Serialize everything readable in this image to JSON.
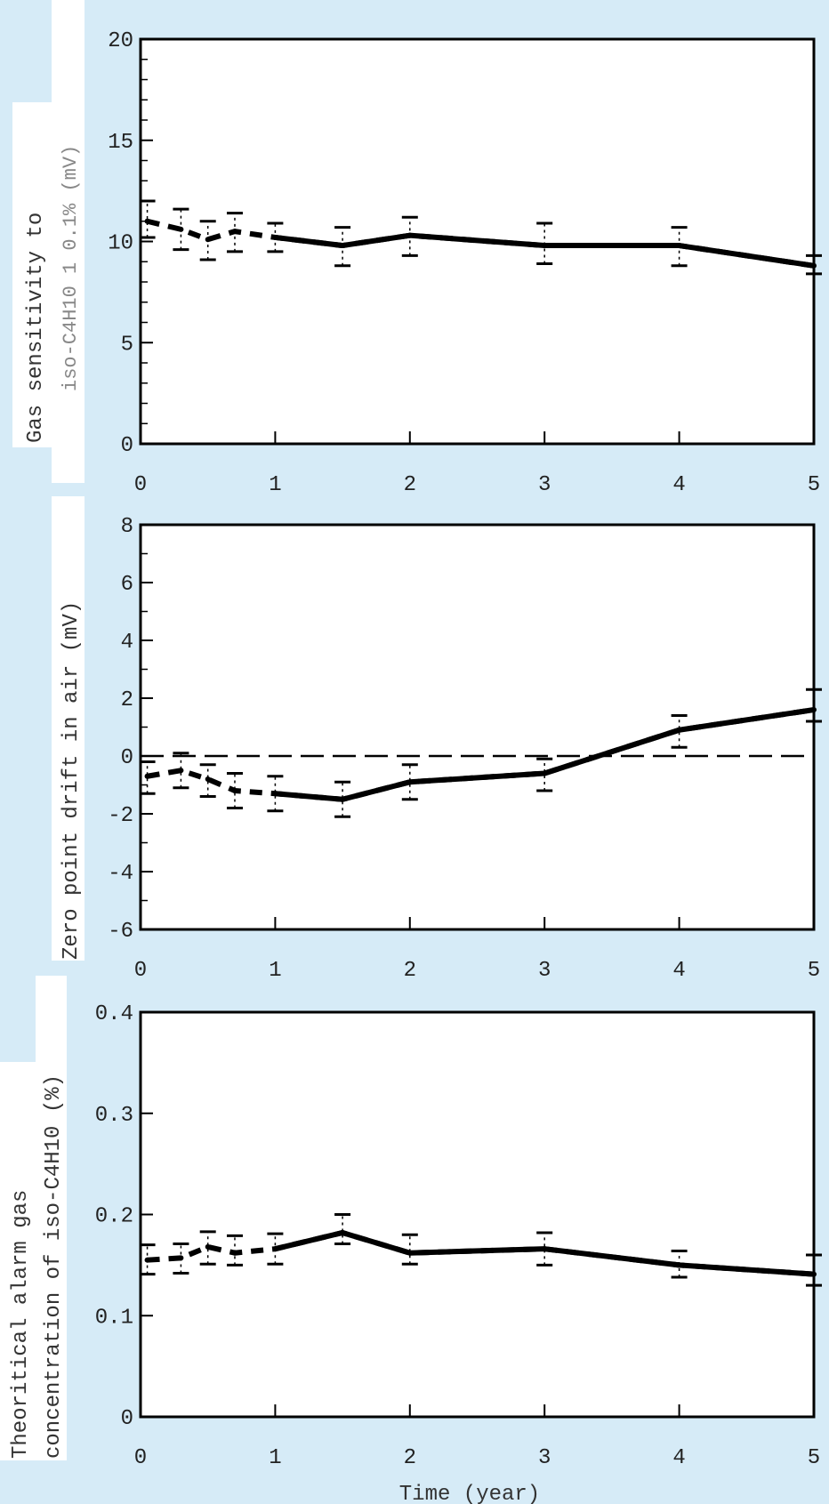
{
  "colors": {
    "background": "#d6ebf7",
    "plot": "#ffffff",
    "line": "#000000",
    "label_panel": "#ffffff"
  },
  "chart_data": [
    {
      "type": "line",
      "ylabel_line1": "Gas sensitivity to",
      "ylabel_line2": "iso-C4H10 1 0.1% (mV)",
      "ylim": [
        0,
        20
      ],
      "xlim": [
        0,
        5
      ],
      "xticks": [
        "0",
        "1",
        "2",
        "3",
        "4",
        "5"
      ],
      "yticks": [
        "0",
        "5",
        "10",
        "15",
        "20"
      ],
      "yminor_step": 1,
      "xminor_step": 1,
      "grid": false,
      "reference_line": null,
      "series": [
        {
          "x": [
            0.05,
            0.3,
            0.5,
            0.7,
            1.0,
            1.5,
            2.0,
            3.0,
            4.0,
            5.0
          ],
          "y": [
            11.0,
            10.6,
            10.1,
            10.5,
            10.2,
            9.8,
            10.3,
            9.8,
            9.8,
            8.8
          ],
          "err_low": [
            10.2,
            9.6,
            9.1,
            9.5,
            9.5,
            8.8,
            9.3,
            8.9,
            8.8,
            8.4
          ],
          "err_high": [
            12.0,
            11.6,
            11.0,
            11.4,
            10.9,
            10.7,
            11.2,
            10.9,
            10.7,
            9.3
          ]
        }
      ]
    },
    {
      "type": "line",
      "ylabel_line1": "Zero point drift in air (mV)",
      "ylabel_line2": "",
      "ylim": [
        -6,
        8
      ],
      "xlim": [
        0,
        5
      ],
      "xticks": [
        "0",
        "1",
        "2",
        "3",
        "4",
        "5"
      ],
      "yticks": [
        "-6",
        "-4",
        "-2",
        "0",
        "2",
        "4",
        "6",
        "8"
      ],
      "yminor_step": 1,
      "xminor_step": 1,
      "grid": false,
      "reference_line": {
        "y": 0,
        "style": "dashed"
      },
      "series": [
        {
          "x": [
            0.05,
            0.3,
            0.5,
            0.7,
            1.0,
            1.5,
            2.0,
            3.0,
            4.0,
            5.0
          ],
          "y": [
            -0.7,
            -0.5,
            -0.8,
            -1.2,
            -1.3,
            -1.5,
            -0.9,
            -0.6,
            0.9,
            1.6
          ],
          "err_low": [
            -1.3,
            -1.1,
            -1.4,
            -1.8,
            -1.9,
            -2.1,
            -1.5,
            -1.2,
            0.3,
            1.2
          ],
          "err_high": [
            -0.2,
            0.1,
            -0.3,
            -0.6,
            -0.7,
            -0.9,
            -0.3,
            -0.1,
            1.4,
            2.3
          ]
        }
      ]
    },
    {
      "type": "line",
      "ylabel_line1": "Theoritical alarm gas",
      "ylabel_line2": "concentration of iso-C4H10 (%)",
      "ylim": [
        0,
        0.4
      ],
      "xlim": [
        0,
        5
      ],
      "xticks": [
        "0",
        "1",
        "2",
        "3",
        "4",
        "5"
      ],
      "yticks": [
        "0",
        "0.1",
        "0.2",
        "0.3",
        "0.4"
      ],
      "yminor_step": null,
      "xminor_step": 1,
      "grid": false,
      "reference_line": null,
      "xlabel": "Time (year)",
      "series": [
        {
          "x": [
            0.05,
            0.3,
            0.5,
            0.7,
            1.0,
            1.5,
            2.0,
            3.0,
            4.0,
            5.0
          ],
          "y": [
            0.155,
            0.157,
            0.168,
            0.162,
            0.166,
            0.182,
            0.162,
            0.166,
            0.15,
            0.141
          ],
          "err_low": [
            0.141,
            0.142,
            0.151,
            0.15,
            0.151,
            0.171,
            0.151,
            0.15,
            0.138,
            0.13
          ],
          "err_high": [
            0.17,
            0.171,
            0.183,
            0.179,
            0.181,
            0.2,
            0.18,
            0.182,
            0.164,
            0.16
          ]
        }
      ]
    }
  ]
}
